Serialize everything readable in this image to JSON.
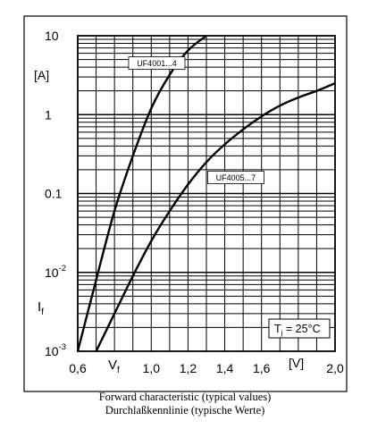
{
  "chart_data": {
    "type": "line",
    "scale": {
      "y": "log",
      "x": "linear"
    },
    "xlim": [
      0.6,
      2.0
    ],
    "ylim": [
      0.001,
      10
    ],
    "grid": true,
    "x_ticks": [
      {
        "value": 0.6,
        "label": "0,6"
      },
      {
        "value": 1.0,
        "label": "1,0"
      },
      {
        "value": 1.2,
        "label": "1,2"
      },
      {
        "value": 1.4,
        "label": "1,4"
      },
      {
        "value": 1.6,
        "label": "1,6"
      },
      {
        "value": 2.0,
        "label": "2,0"
      }
    ],
    "y_ticks": [
      {
        "value": 10,
        "label": "10"
      },
      {
        "value": 1,
        "label": "1"
      },
      {
        "value": 0.1,
        "label": "0.1"
      },
      {
        "value": 0.01,
        "label": "10",
        "sup": "-2"
      },
      {
        "value": 0.001,
        "label": "10",
        "sup": "-3"
      }
    ],
    "x_unit": "[V]",
    "y_unit": "[A]",
    "xlabel": {
      "main": "V",
      "sub": "f"
    },
    "ylabel": {
      "main": "I",
      "sub": "f"
    },
    "annotation": {
      "pre": "T",
      "sub": "j",
      "post": " = 25°C"
    },
    "caption_lines": [
      "Forward characteristic (typical values)",
      "Durchlaßkennlinie (typische Werte)"
    ],
    "series": [
      {
        "name": "UF4001...4",
        "x": [
          0.6,
          0.7,
          0.8,
          0.9,
          1.0,
          1.1,
          1.2,
          1.3
        ],
        "y": [
          0.001,
          0.008,
          0.06,
          0.3,
          1.2,
          3.2,
          6.5,
          10
        ]
      },
      {
        "name": "UF4005...7",
        "x": [
          0.7,
          0.8,
          0.9,
          1.0,
          1.1,
          1.2,
          1.3,
          1.4,
          1.5,
          1.6,
          1.7,
          1.8,
          1.9,
          2.0
        ],
        "y": [
          0.001,
          0.003,
          0.009,
          0.025,
          0.06,
          0.13,
          0.25,
          0.42,
          0.65,
          0.95,
          1.3,
          1.65,
          2.0,
          2.5
        ]
      }
    ]
  }
}
